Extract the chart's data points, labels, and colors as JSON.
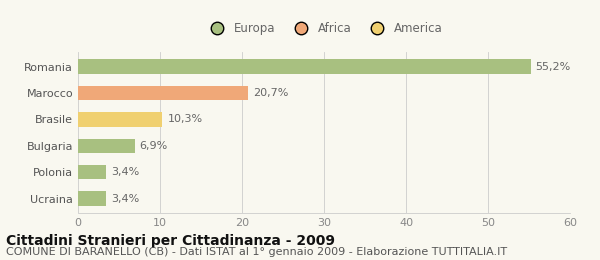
{
  "categories": [
    "Ucraina",
    "Polonia",
    "Bulgaria",
    "Brasile",
    "Marocco",
    "Romania"
  ],
  "values": [
    3.4,
    3.4,
    6.9,
    10.3,
    20.7,
    55.2
  ],
  "bar_colors": [
    "#a8c080",
    "#a8c080",
    "#a8c080",
    "#f0d070",
    "#f0a878",
    "#a8c080"
  ],
  "labels": [
    "3,4%",
    "3,4%",
    "6,9%",
    "10,3%",
    "20,7%",
    "55,2%"
  ],
  "legend_items": [
    {
      "label": "Europa",
      "color": "#a8c080"
    },
    {
      "label": "Africa",
      "color": "#f0a878"
    },
    {
      "label": "America",
      "color": "#f0d070"
    }
  ],
  "xlim": [
    0,
    60
  ],
  "xticks": [
    0,
    10,
    20,
    30,
    40,
    50,
    60
  ],
  "title": "Cittadini Stranieri per Cittadinanza - 2009",
  "subtitle": "COMUNE DI BARANELLO (CB) - Dati ISTAT al 1° gennaio 2009 - Elaborazione TUTTITALIA.IT",
  "background_color": "#f9f8f0",
  "bar_height": 0.55,
  "title_fontsize": 10,
  "subtitle_fontsize": 8,
  "label_fontsize": 8,
  "tick_fontsize": 8,
  "ytick_fontsize": 8,
  "legend_fontsize": 8.5
}
